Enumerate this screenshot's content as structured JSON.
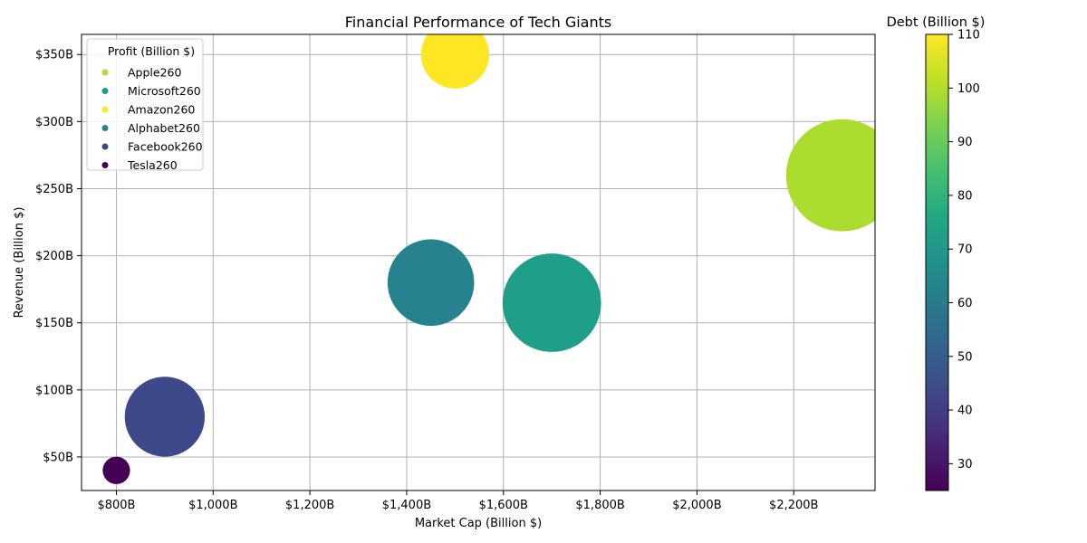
{
  "chart_data": {
    "type": "scatter",
    "title": "Financial Performance of Tech Giants",
    "xlabel": "Market Cap (Billion $)",
    "ylabel": "Revenue (Billion $)",
    "xlim": [
      728,
      2368
    ],
    "ylim": [
      25,
      365
    ],
    "x_ticks": [
      800,
      1000,
      1200,
      1400,
      1600,
      1800,
      2000,
      2200
    ],
    "x_tick_labels": [
      "$800B",
      "$1,000B",
      "$1,200B",
      "$1,400B",
      "$1,600B",
      "$1,800B",
      "$2,000B",
      "$2,200B"
    ],
    "y_ticks": [
      50,
      100,
      150,
      200,
      250,
      300,
      350
    ],
    "y_tick_labels": [
      "$50B",
      "$100B",
      "$150B",
      "$200B",
      "$250B",
      "$300B",
      "$350B"
    ],
    "grid": true,
    "legend_title": "Profit (Billion $)",
    "legend_position": "top-left",
    "colorbar_label": "Debt (Billion $)",
    "colorbar_range": [
      25,
      110
    ],
    "colorbar_ticks": [
      30,
      40,
      50,
      60,
      70,
      80,
      90,
      100,
      110
    ],
    "size_encoding": "profit",
    "points": [
      {
        "label": "Apple260",
        "market_cap": 2300,
        "revenue": 260,
        "debt": 98,
        "profit": 57,
        "color": "#addc30"
      },
      {
        "label": "Microsoft260",
        "market_cap": 1700,
        "revenue": 165,
        "debt": 75,
        "profit": 44,
        "color": "#1f9e89"
      },
      {
        "label": "Amazon260",
        "market_cap": 1500,
        "revenue": 350,
        "debt": 110,
        "profit": 21,
        "color": "#fde725"
      },
      {
        "label": "Alphabet260",
        "market_cap": 1450,
        "revenue": 180,
        "debt": 62,
        "profit": 34,
        "color": "#26828e"
      },
      {
        "label": "Facebook260",
        "market_cap": 900,
        "revenue": 80,
        "debt": 42,
        "profit": 29,
        "color": "#3e4989"
      },
      {
        "label": "Tesla260",
        "market_cap": 800,
        "revenue": 40,
        "debt": 25,
        "profit": 3.4,
        "color": "#440154"
      }
    ]
  }
}
